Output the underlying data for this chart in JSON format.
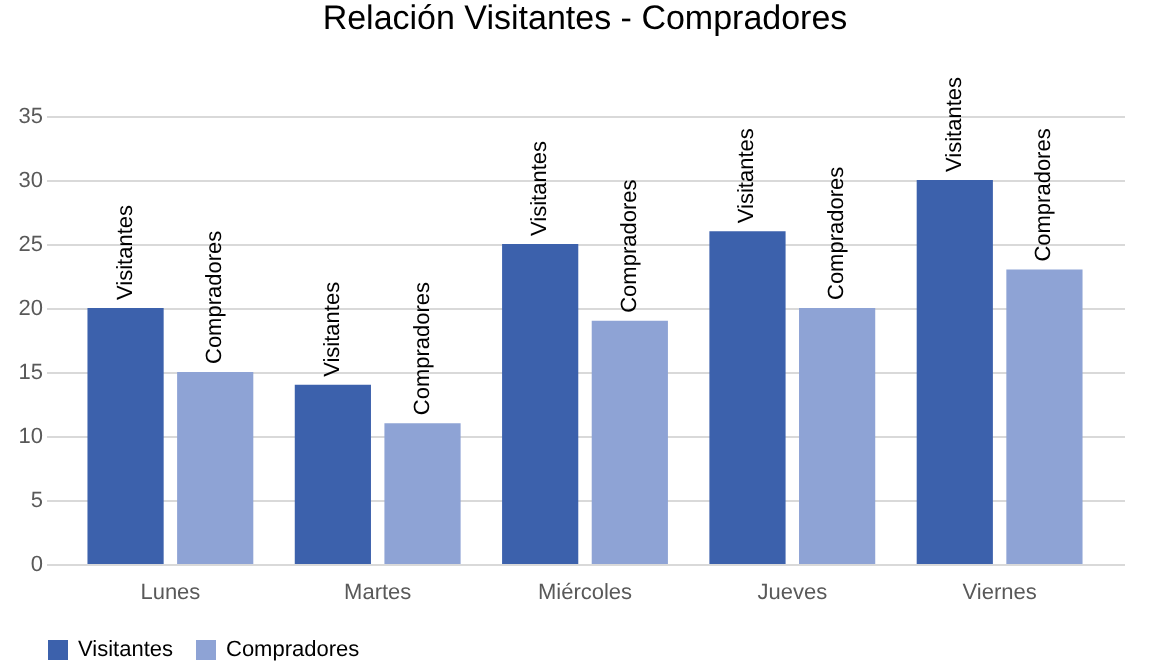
{
  "chart_data": {
    "type": "bar",
    "title": "Relación Visitantes - Compradores",
    "categories": [
      "Lunes",
      "Martes",
      "Miércoles",
      "Jueves",
      "Viernes"
    ],
    "series": [
      {
        "name": "Visitantes",
        "color": "#3c61ac",
        "values": [
          20,
          14,
          25,
          26,
          30
        ],
        "value_labels": [
          "Visitantes",
          "Visitantes",
          "Visitantes",
          "Visitantes",
          "Visitantes"
        ]
      },
      {
        "name": "Compradores",
        "color": "#8ea3d5",
        "values": [
          15,
          11,
          19,
          20,
          23
        ],
        "value_labels": [
          "Compradores",
          "Compradores",
          "Compradores",
          "Compradores",
          "Compradores"
        ]
      }
    ],
    "ylim": [
      0,
      35
    ],
    "yticks": [
      0,
      5,
      10,
      15,
      20,
      25,
      30,
      35
    ],
    "grid": "y",
    "legend": "bottom"
  }
}
